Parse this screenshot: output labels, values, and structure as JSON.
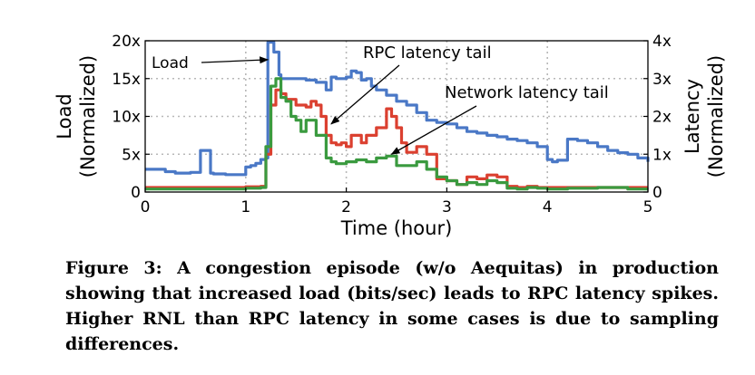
{
  "chart_data": {
    "type": "line",
    "xlabel": "Time (hour)",
    "ylabel_left": "Load\n(Normalized)",
    "ylabel_right": "Latency\n(Normalized)",
    "xlim": [
      0,
      5
    ],
    "ylim_left": [
      0,
      20
    ],
    "ylim_right": [
      0,
      4
    ],
    "x_ticks": [
      0,
      1,
      2,
      3,
      4,
      5
    ],
    "x_tick_labels": [
      "0",
      "1",
      "2",
      "3",
      "4",
      "5"
    ],
    "left_ticks": [
      0,
      5,
      10,
      15,
      20
    ],
    "left_tick_labels": [
      "0",
      "5x",
      "10x",
      "15x",
      "20x"
    ],
    "right_ticks": [
      0,
      1,
      2,
      3,
      4
    ],
    "right_tick_labels": [
      "0",
      "1x",
      "2x",
      "3x",
      "4x"
    ],
    "grid": true,
    "annotations": [
      {
        "text": "Load",
        "points_to": {
          "x": 1.22,
          "y": 17.5,
          "axis": "left"
        }
      },
      {
        "text": "RPC latency tail",
        "points_to": {
          "x": 1.85,
          "y": 1.8,
          "axis": "right"
        }
      },
      {
        "text": "Network latency tail",
        "points_to": {
          "x": 2.45,
          "y": 1.0,
          "axis": "right"
        }
      }
    ],
    "series": [
      {
        "name": "Load",
        "axis": "left",
        "color": "#4a78c6",
        "x": [
          0,
          0.2,
          0.3,
          0.45,
          0.55,
          0.58,
          0.65,
          0.68,
          0.8,
          0.95,
          1.0,
          1.05,
          1.1,
          1.15,
          1.2,
          1.22,
          1.25,
          1.28,
          1.33,
          1.35,
          1.4,
          1.5,
          1.6,
          1.7,
          1.8,
          1.85,
          1.9,
          2.0,
          2.05,
          2.1,
          2.15,
          2.2,
          2.25,
          2.3,
          2.4,
          2.5,
          2.6,
          2.7,
          2.8,
          2.9,
          3.0,
          3.1,
          3.2,
          3.3,
          3.4,
          3.5,
          3.6,
          3.7,
          3.8,
          3.9,
          4.0,
          4.05,
          4.1,
          4.2,
          4.3,
          4.4,
          4.5,
          4.6,
          4.7,
          4.8,
          4.9,
          5.0
        ],
        "values": [
          3.0,
          2.7,
          2.5,
          2.6,
          5.5,
          5.5,
          2.5,
          2.4,
          2.3,
          2.3,
          3.3,
          3.5,
          3.8,
          4.3,
          4.5,
          19.8,
          19.8,
          18.5,
          15.5,
          15.0,
          15.0,
          15.0,
          14.8,
          14.5,
          13.5,
          15.2,
          15.0,
          15.2,
          16.0,
          15.8,
          14.8,
          15.0,
          14.0,
          13.5,
          12.8,
          12.0,
          11.5,
          10.5,
          9.5,
          9.2,
          9.0,
          8.5,
          8.0,
          7.8,
          7.5,
          7.3,
          7.0,
          6.8,
          6.5,
          6.0,
          4.3,
          4.0,
          4.2,
          7.0,
          6.8,
          6.5,
          6.0,
          5.5,
          5.2,
          5.0,
          4.5,
          4.0
        ]
      },
      {
        "name": "RPC latency tail",
        "axis": "right",
        "color": "#db4030",
        "x": [
          0,
          0.5,
          1.0,
          1.15,
          1.2,
          1.25,
          1.3,
          1.35,
          1.4,
          1.5,
          1.6,
          1.65,
          1.7,
          1.75,
          1.8,
          1.85,
          1.9,
          1.95,
          2.0,
          2.05,
          2.1,
          2.15,
          2.2,
          2.3,
          2.4,
          2.45,
          2.5,
          2.55,
          2.6,
          2.7,
          2.8,
          2.85,
          2.9,
          3.0,
          3.1,
          3.2,
          3.3,
          3.4,
          3.5,
          3.6,
          3.7,
          3.8,
          3.9,
          4.0,
          4.2,
          4.5,
          4.8,
          5.0
        ],
        "values": [
          0.12,
          0.12,
          0.14,
          0.15,
          1.0,
          2.3,
          2.7,
          2.6,
          2.45,
          2.3,
          2.25,
          2.4,
          2.3,
          2.0,
          1.5,
          1.3,
          1.25,
          1.3,
          1.2,
          1.5,
          1.5,
          1.3,
          1.5,
          1.7,
          2.2,
          2.0,
          1.7,
          1.3,
          1.05,
          1.2,
          1.0,
          1.0,
          0.35,
          0.3,
          0.2,
          0.4,
          0.35,
          0.45,
          0.4,
          0.15,
          0.12,
          0.15,
          0.12,
          0.12,
          0.12,
          0.12,
          0.12,
          0.12
        ]
      },
      {
        "name": "Network latency tail",
        "axis": "right",
        "color": "#3a9a3f",
        "x": [
          0,
          0.5,
          1.0,
          1.15,
          1.2,
          1.25,
          1.3,
          1.35,
          1.4,
          1.45,
          1.5,
          1.55,
          1.6,
          1.7,
          1.8,
          1.85,
          1.9,
          2.0,
          2.1,
          2.2,
          2.3,
          2.35,
          2.4,
          2.5,
          2.6,
          2.7,
          2.8,
          2.9,
          3.0,
          3.1,
          3.2,
          3.3,
          3.4,
          3.5,
          3.6,
          3.7,
          3.8,
          3.9,
          4.0,
          4.2,
          4.5,
          4.8,
          5.0
        ],
        "values": [
          0.08,
          0.08,
          0.1,
          0.12,
          1.2,
          2.8,
          3.0,
          2.5,
          2.4,
          2.0,
          1.9,
          1.6,
          1.9,
          1.5,
          0.9,
          0.8,
          0.75,
          0.8,
          0.85,
          0.8,
          0.9,
          0.9,
          0.95,
          0.7,
          0.7,
          0.8,
          0.6,
          0.4,
          0.3,
          0.2,
          0.25,
          0.2,
          0.3,
          0.25,
          0.1,
          0.08,
          0.12,
          0.1,
          0.08,
          0.1,
          0.12,
          0.08,
          0.08
        ]
      }
    ]
  },
  "caption": "Figure 3: A congestion episode (w/o Aequitas) in production showing that increased load (bits/sec) leads to RPC latency spikes. Higher RNL than RPC latency in some cases is due to sampling differences."
}
